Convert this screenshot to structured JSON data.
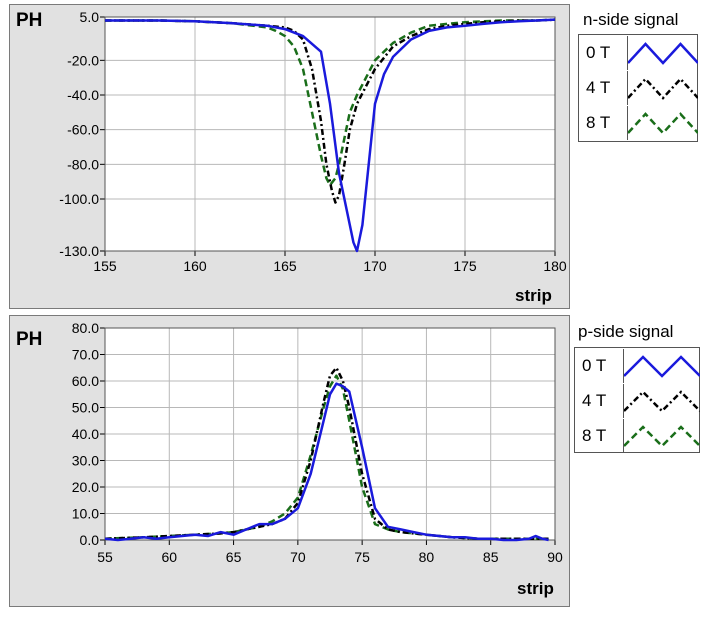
{
  "chart_data": [
    {
      "type": "line",
      "title": "n-side signal",
      "ylabel": "PH",
      "xlabel": "strip",
      "xlim": [
        155,
        180
      ],
      "ylim": [
        -130,
        5
      ],
      "xticks": [
        "155",
        "160",
        "165",
        "170",
        "175",
        "180"
      ],
      "yticks": [
        "5.0",
        "-20.0",
        "-40.0",
        "-60.0",
        "-80.0",
        "-100.0",
        "-130.0"
      ],
      "grid": true,
      "legend_position": "right",
      "series": [
        {
          "name": "0 T",
          "color": "#1a1adc",
          "style": "solid",
          "x": [
            155,
            158,
            160,
            162,
            164,
            165,
            166,
            167,
            167.5,
            168,
            168.5,
            168.8,
            169,
            169.3,
            169.6,
            170,
            170.5,
            171,
            172,
            173,
            174,
            175,
            176,
            177,
            178,
            179,
            180
          ],
          "y": [
            3,
            3,
            2.5,
            1.5,
            0,
            -2,
            -6,
            -15,
            -45,
            -85,
            -110,
            -125,
            -130,
            -115,
            -85,
            -45,
            -28,
            -18,
            -8,
            -3,
            -1,
            0,
            1,
            2,
            2.5,
            3,
            3.5
          ]
        },
        {
          "name": "4 T",
          "color": "#000000",
          "style": "dashdot",
          "x": [
            155,
            158,
            160,
            162,
            164,
            165,
            165.5,
            166,
            166.5,
            167,
            167.3,
            167.6,
            167.8,
            168,
            168.3,
            168.6,
            169,
            169.5,
            170,
            171,
            172,
            173,
            174,
            175,
            176,
            177,
            178,
            179,
            180
          ],
          "y": [
            3,
            3,
            2.5,
            1.5,
            0,
            -1,
            -3,
            -8,
            -25,
            -55,
            -80,
            -95,
            -102,
            -98,
            -80,
            -60,
            -45,
            -35,
            -25,
            -12,
            -6,
            -2,
            0,
            1,
            2,
            2.5,
            3,
            3,
            3.5
          ]
        },
        {
          "name": "8 T",
          "color": "#1a6e1a",
          "style": "dashed",
          "x": [
            155,
            158,
            160,
            162,
            164,
            164.5,
            165,
            165.5,
            166,
            166.5,
            167,
            167.3,
            167.5,
            167.8,
            168,
            168.3,
            168.6,
            169,
            169.5,
            170,
            171,
            172,
            173,
            174,
            175,
            176,
            177,
            178,
            179,
            180
          ],
          "y": [
            3,
            3,
            2.5,
            1.5,
            -1,
            -3,
            -6,
            -12,
            -25,
            -50,
            -75,
            -88,
            -92,
            -88,
            -80,
            -65,
            -50,
            -40,
            -30,
            -20,
            -10,
            -4,
            0,
            1,
            2,
            2.5,
            3,
            3,
            3,
            3.5
          ]
        }
      ]
    },
    {
      "type": "line",
      "title": "p-side signal",
      "ylabel": "PH",
      "xlabel": "strip",
      "xlim": [
        55,
        90
      ],
      "ylim": [
        0,
        80
      ],
      "xticks": [
        "55",
        "60",
        "65",
        "70",
        "75",
        "80",
        "85",
        "90"
      ],
      "yticks": [
        "80.0",
        "70.0",
        "60.0",
        "50.0",
        "40.0",
        "30.0",
        "20.0",
        "10.0",
        "0.0"
      ],
      "grid": true,
      "legend_position": "right",
      "series": [
        {
          "name": "0 T",
          "color": "#1a1adc",
          "style": "solid",
          "x": [
            55,
            56,
            57,
            58,
            59,
            60,
            61,
            62,
            63,
            64,
            65,
            66,
            67,
            68,
            69,
            70,
            71,
            72,
            72.5,
            73,
            73.5,
            74,
            75,
            76,
            77,
            78,
            79,
            80,
            81,
            82,
            83,
            84,
            85,
            86,
            87,
            88,
            88.5,
            89,
            89.5
          ],
          "y": [
            0.5,
            0,
            0.5,
            1,
            0.5,
            1,
            1.5,
            2,
            1.5,
            3,
            2,
            4,
            6,
            6,
            8,
            12,
            25,
            45,
            55,
            59,
            58,
            56,
            35,
            12,
            5,
            4,
            3,
            2,
            1.5,
            1,
            1,
            0.5,
            0.5,
            0,
            0,
            0.5,
            1.5,
            0.5,
            0
          ]
        },
        {
          "name": "4 T",
          "color": "#000000",
          "style": "dashdot",
          "x": [
            55,
            58,
            60,
            62,
            64,
            65,
            66,
            67,
            68,
            69,
            70,
            71,
            72,
            72.5,
            73,
            73.5,
            74,
            75,
            76,
            77,
            78,
            80,
            82,
            84,
            86,
            88,
            89.5
          ],
          "y": [
            0.5,
            1,
            1.5,
            2,
            2.5,
            3,
            4,
            5,
            6,
            8,
            14,
            30,
            52,
            62,
            65,
            60,
            50,
            25,
            8,
            4,
            3,
            2,
            1,
            0.5,
            0.5,
            0.5,
            0.5
          ]
        },
        {
          "name": "8 T",
          "color": "#1a6e1a",
          "style": "dashed",
          "x": [
            55,
            58,
            60,
            62,
            64,
            65,
            66,
            67,
            68,
            69,
            70,
            71,
            72,
            72.5,
            73,
            73.5,
            74,
            75,
            76,
            77,
            78,
            80,
            82,
            84,
            86,
            88,
            89.5
          ],
          "y": [
            0.5,
            1,
            1.5,
            2,
            2.5,
            3,
            4,
            5,
            7,
            10,
            16,
            32,
            50,
            58,
            62,
            57,
            45,
            20,
            6,
            4,
            3,
            2,
            1,
            0.5,
            0.5,
            0.5,
            0.5
          ]
        }
      ]
    }
  ]
}
